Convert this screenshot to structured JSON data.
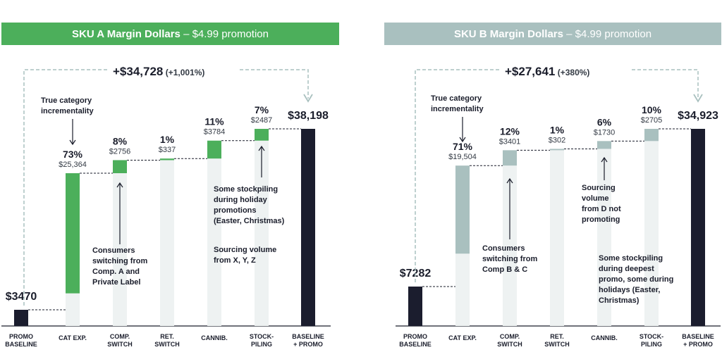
{
  "chart_data": [
    {
      "type": "waterfall",
      "title": "SKU A Margin Dollars",
      "subtitle": "– $4.99 promotion",
      "accent": "#4caf5b",
      "categories": [
        "PROMO\nBASELINE",
        "CAT EXP.",
        "COMP.\nSWITCH",
        "RET.\nSWITCH",
        "CANNIB.",
        "STOCK-\nPILING",
        "BASELINE\n+ PROMO"
      ],
      "values": [
        3470,
        25364,
        2756,
        337,
        3784,
        2487,
        38198
      ],
      "percent_labels": [
        "",
        "73%",
        "8%",
        "1%",
        "11%",
        "7%",
        ""
      ],
      "value_labels": [
        "$3470",
        "$25,364",
        "$2756",
        "$337",
        "$3784",
        "$2487",
        "$38,198"
      ],
      "total_change": "+$34,728",
      "total_change_pct": "(+1,001%)",
      "annotations": [
        {
          "text": "True category incrementality",
          "bar": 1
        },
        {
          "text": "Consumers switching from Comp. A and Private Label",
          "bar": 2
        },
        {
          "text": "Some stockpiling during holiday promotions (Easter, Christmas)",
          "bar": 5
        },
        {
          "text": "Sourcing volume from X, Y, Z",
          "bar": 5
        }
      ]
    },
    {
      "type": "waterfall",
      "title": "SKU B Margin Dollars",
      "subtitle": "– $4.99 promotion",
      "accent": "#a9c0bf",
      "categories": [
        "PROMO\nBASELINE",
        "CAT EXP.",
        "COMP.\nSWITCH",
        "RET.\nSWITCH",
        "CANNIB.",
        "STOCK-\nPILING",
        "BASELINE\n+ PROMO"
      ],
      "values": [
        7282,
        19504,
        3401,
        302,
        1730,
        2705,
        34923
      ],
      "percent_labels": [
        "",
        "71%",
        "12%",
        "1%",
        "6%",
        "10%",
        ""
      ],
      "value_labels": [
        "$7282",
        "$19,504",
        "$3401",
        "$302",
        "$1730",
        "$2705",
        "$34,923"
      ],
      "total_change": "+$27,641",
      "total_change_pct": "(+380%)",
      "annotations": [
        {
          "text": "True category incrementality",
          "bar": 1
        },
        {
          "text": "Consumers switching from Comp B & C",
          "bar": 2
        },
        {
          "text": "Sourcing volume from D not promoting",
          "bar": 4
        },
        {
          "text": "Some stockpiling during deepest promo, some during holidays (Easter, Christmas)",
          "bar": 5
        }
      ]
    }
  ]
}
